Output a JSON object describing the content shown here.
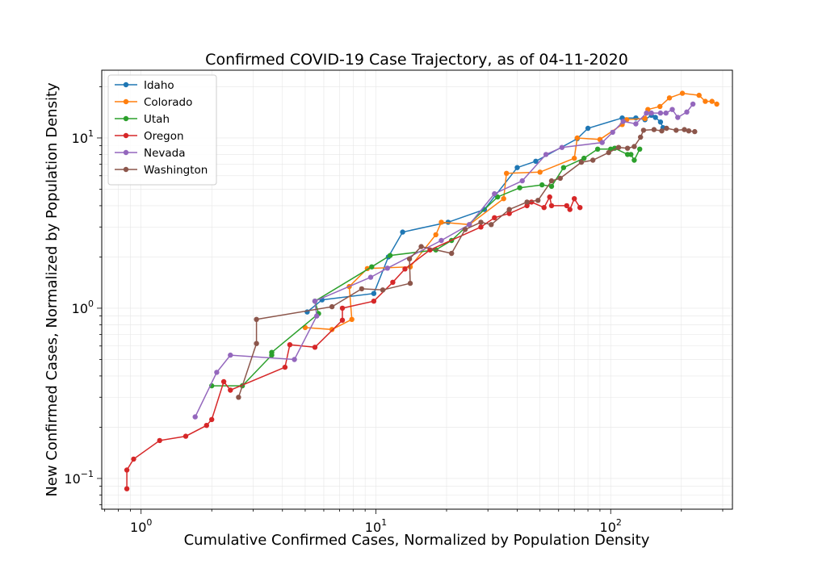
{
  "chart_data": {
    "type": "line",
    "title": "Confirmed COVID-19 Case Trajectory, as of 04-11-2020",
    "xlabel": "Cumulative Confirmed Cases, Normalized by Population Density",
    "ylabel": "New Confirmed Cases, Normalized by Population Density",
    "xscale": "log",
    "yscale": "log",
    "xlim": [
      0.68,
      330
    ],
    "ylim": [
      0.066,
      25
    ],
    "grid": true,
    "legend_position": "top-left",
    "x_tick_labels": [
      {
        "value": 1,
        "mantissa": "10",
        "exp": "0"
      },
      {
        "value": 10,
        "mantissa": "10",
        "exp": "1"
      },
      {
        "value": 100,
        "mantissa": "10",
        "exp": "2"
      }
    ],
    "y_tick_labels": [
      {
        "value": 0.1,
        "mantissa": "10",
        "exp": "−1"
      },
      {
        "value": 1,
        "mantissa": "10",
        "exp": "0"
      },
      {
        "value": 10,
        "mantissa": "10",
        "exp": "1"
      }
    ],
    "series": [
      {
        "name": "Idaho",
        "color": "#1f77b4",
        "points": [
          [
            5.1,
            0.95
          ],
          [
            5.9,
            1.12
          ],
          [
            9.8,
            1.22
          ],
          [
            11.3,
            2.0
          ],
          [
            13.0,
            2.8
          ],
          [
            20.3,
            3.2
          ],
          [
            29.0,
            3.8
          ],
          [
            40.0,
            6.7
          ],
          [
            48.0,
            7.3
          ],
          [
            72.0,
            9.9
          ],
          [
            80.0,
            11.4
          ],
          [
            112.0,
            13.1
          ],
          [
            128.0,
            13.1
          ],
          [
            140.0,
            12.8
          ],
          [
            149.0,
            13.6
          ],
          [
            155.0,
            13.2
          ],
          [
            163.0,
            12.4
          ],
          [
            167.0,
            11.5
          ]
        ]
      },
      {
        "name": "Colorado",
        "color": "#ff7f0e",
        "points": [
          [
            5.0,
            0.77
          ],
          [
            6.5,
            0.75
          ],
          [
            7.9,
            0.86
          ],
          [
            7.7,
            1.34
          ],
          [
            9.2,
            1.71
          ],
          [
            14.0,
            1.75
          ],
          [
            18.0,
            2.7
          ],
          [
            19.0,
            3.2
          ],
          [
            25.0,
            3.1
          ],
          [
            35.0,
            4.4
          ],
          [
            36.0,
            6.2
          ],
          [
            50.0,
            6.3
          ],
          [
            70.0,
            7.6
          ],
          [
            72.0,
            10.0
          ],
          [
            90.0,
            9.8
          ],
          [
            112.0,
            12.0
          ],
          [
            117.0,
            12.8
          ],
          [
            140.0,
            13.0
          ],
          [
            144.0,
            14.7
          ],
          [
            162.0,
            15.3
          ],
          [
            178.0,
            17.2
          ],
          [
            202.0,
            18.3
          ],
          [
            238.0,
            17.8
          ],
          [
            253.0,
            16.4
          ],
          [
            270.0,
            16.4
          ],
          [
            283.0,
            15.8
          ]
        ]
      },
      {
        "name": "Utah",
        "color": "#2ca02c",
        "points": [
          [
            2.0,
            0.35
          ],
          [
            2.7,
            0.35
          ],
          [
            3.6,
            0.53
          ],
          [
            3.6,
            0.55
          ],
          [
            5.7,
            0.93
          ],
          [
            5.5,
            1.1
          ],
          [
            9.6,
            1.75
          ],
          [
            11.5,
            2.04
          ],
          [
            18.0,
            2.2
          ],
          [
            21.0,
            2.5
          ],
          [
            33.0,
            4.5
          ],
          [
            41.0,
            5.1
          ],
          [
            51.0,
            5.3
          ],
          [
            56.0,
            5.2
          ],
          [
            63.0,
            6.7
          ],
          [
            77.0,
            7.6
          ],
          [
            88.0,
            8.6
          ],
          [
            100.0,
            8.6
          ],
          [
            104.0,
            8.7
          ],
          [
            118.0,
            8.0
          ],
          [
            122.0,
            8.0
          ],
          [
            126.0,
            7.4
          ],
          [
            133.0,
            8.6
          ]
        ]
      },
      {
        "name": "Oregon",
        "color": "#d62728",
        "points": [
          [
            0.87,
            0.087
          ],
          [
            0.87,
            0.112
          ],
          [
            0.93,
            0.13
          ],
          [
            1.2,
            0.167
          ],
          [
            1.55,
            0.177
          ],
          [
            1.9,
            0.205
          ],
          [
            2.0,
            0.222
          ],
          [
            2.25,
            0.37
          ],
          [
            2.4,
            0.33
          ],
          [
            4.1,
            0.45
          ],
          [
            4.3,
            0.61
          ],
          [
            5.5,
            0.59
          ],
          [
            7.2,
            0.85
          ],
          [
            7.2,
            1.0
          ],
          [
            9.8,
            1.1
          ],
          [
            11.8,
            1.42
          ],
          [
            13.3,
            1.7
          ],
          [
            17.0,
            2.2
          ],
          [
            28.0,
            3.0
          ],
          [
            32.0,
            3.4
          ],
          [
            37.0,
            3.6
          ],
          [
            44.0,
            4.0
          ],
          [
            46.0,
            4.2
          ],
          [
            52.0,
            3.9
          ],
          [
            55.0,
            4.5
          ],
          [
            56.0,
            4.0
          ],
          [
            65.0,
            4.0
          ],
          [
            67.0,
            3.8
          ],
          [
            70.0,
            4.4
          ],
          [
            74.0,
            3.9
          ]
        ]
      },
      {
        "name": "Nevada",
        "color": "#9467bd",
        "points": [
          [
            1.7,
            0.23
          ],
          [
            2.1,
            0.42
          ],
          [
            2.4,
            0.53
          ],
          [
            4.5,
            0.5
          ],
          [
            5.6,
            0.9
          ],
          [
            5.5,
            1.1
          ],
          [
            9.5,
            1.52
          ],
          [
            11.2,
            1.72
          ],
          [
            19.0,
            2.5
          ],
          [
            25.0,
            3.1
          ],
          [
            32.0,
            4.7
          ],
          [
            42.0,
            5.6
          ],
          [
            53.0,
            8.0
          ],
          [
            62.0,
            8.8
          ],
          [
            92.0,
            9.4
          ],
          [
            102.0,
            10.8
          ],
          [
            113.0,
            12.5
          ],
          [
            128.0,
            12.1
          ],
          [
            142.0,
            14.0
          ],
          [
            149.0,
            14.0
          ],
          [
            163.0,
            14.0
          ],
          [
            172.0,
            14.0
          ],
          [
            183.0,
            14.7
          ],
          [
            193.0,
            13.2
          ],
          [
            211.0,
            14.2
          ],
          [
            224.0,
            15.8
          ]
        ]
      },
      {
        "name": "Washington",
        "color": "#8c564b",
        "points": [
          [
            2.6,
            0.3
          ],
          [
            3.1,
            0.62
          ],
          [
            3.1,
            0.86
          ],
          [
            6.5,
            1.02
          ],
          [
            8.7,
            1.3
          ],
          [
            10.7,
            1.28
          ],
          [
            14.0,
            1.4
          ],
          [
            13.9,
            1.95
          ],
          [
            15.6,
            2.3
          ],
          [
            21.0,
            2.1
          ],
          [
            24.0,
            2.9
          ],
          [
            28.0,
            3.2
          ],
          [
            31.0,
            3.1
          ],
          [
            37.0,
            3.8
          ],
          [
            44.0,
            4.2
          ],
          [
            49.0,
            4.3
          ],
          [
            56.0,
            5.6
          ],
          [
            61.0,
            5.8
          ],
          [
            75.0,
            7.2
          ],
          [
            84.0,
            7.4
          ],
          [
            98.0,
            8.2
          ],
          [
            108.0,
            8.8
          ],
          [
            118.0,
            8.7
          ],
          [
            126.0,
            8.9
          ],
          [
            134.0,
            10.1
          ],
          [
            138.0,
            11.1
          ],
          [
            153.0,
            11.2
          ],
          [
            165.0,
            11.0
          ],
          [
            173.0,
            11.4
          ],
          [
            190.0,
            11.1
          ],
          [
            206.0,
            11.2
          ],
          [
            215.0,
            11.0
          ],
          [
            228.0,
            10.9
          ]
        ]
      }
    ]
  }
}
